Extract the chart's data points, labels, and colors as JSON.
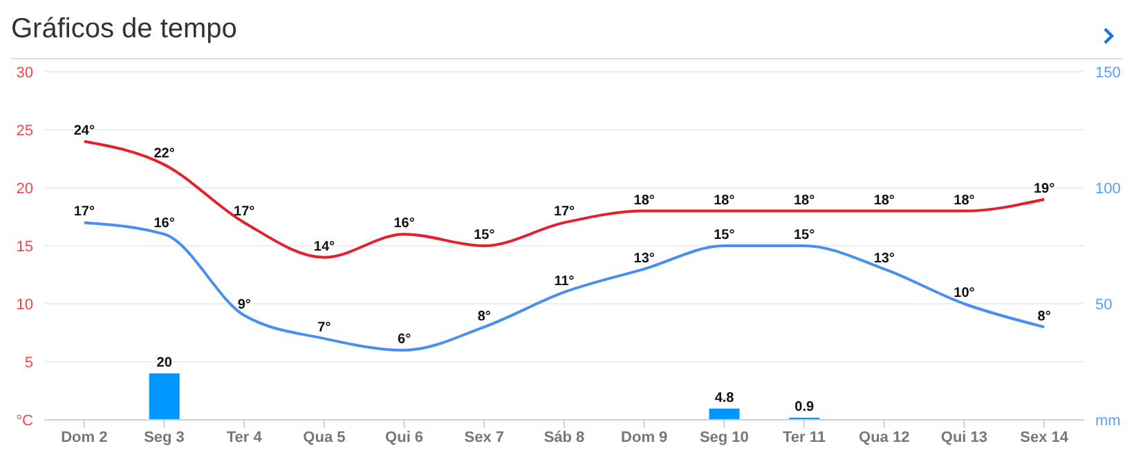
{
  "chart_data": {
    "type": "line",
    "title": "Gráficos de tempo",
    "categories": [
      "Dom 2",
      "Seg 3",
      "Ter 4",
      "Qua 5",
      "Qui 6",
      "Sex 7",
      "Sáb 8",
      "Dom 9",
      "Seg 10",
      "Ter 11",
      "Qua 12",
      "Qui 13",
      "Sex 14"
    ],
    "series": [
      {
        "color": "#e3202c",
        "values": [
          24,
          22,
          17,
          14,
          16,
          15,
          17,
          18,
          18,
          18,
          18,
          18,
          19
        ],
        "value_labels": [
          "24°",
          "22°",
          "17°",
          "14°",
          "16°",
          "15°",
          "17°",
          "18°",
          "18°",
          "18°",
          "18°",
          "18°",
          "19°"
        ]
      },
      {
        "color": "#4a8ef0",
        "values": [
          17,
          16,
          9,
          7,
          6,
          8,
          11,
          13,
          15,
          15,
          13,
          10,
          8
        ],
        "value_labels": [
          "17°",
          "16°",
          "9°",
          "7°",
          "6°",
          "8°",
          "11°",
          "13°",
          "15°",
          "15°",
          "13°",
          "10°",
          "8°"
        ]
      },
      {
        "type": "bar",
        "axis": "y2",
        "color": "#0096ff",
        "values": [
          null,
          20,
          null,
          null,
          null,
          null,
          null,
          null,
          4.8,
          0.9,
          null,
          null,
          null
        ],
        "value_labels": [
          null,
          "20",
          null,
          null,
          null,
          null,
          null,
          null,
          "4.8",
          "0.9",
          null,
          null,
          null
        ]
      }
    ],
    "ylim": [
      0,
      30
    ],
    "yticks": [
      {
        "value": 0,
        "label": "°C"
      },
      5,
      10,
      15,
      20,
      25,
      30
    ],
    "y2lim": [
      0,
      150
    ],
    "y2ticks": [
      {
        "value": 0,
        "label": "mm"
      },
      50,
      100,
      150
    ],
    "grid": "y",
    "marker": "none",
    "legend": false
  }
}
